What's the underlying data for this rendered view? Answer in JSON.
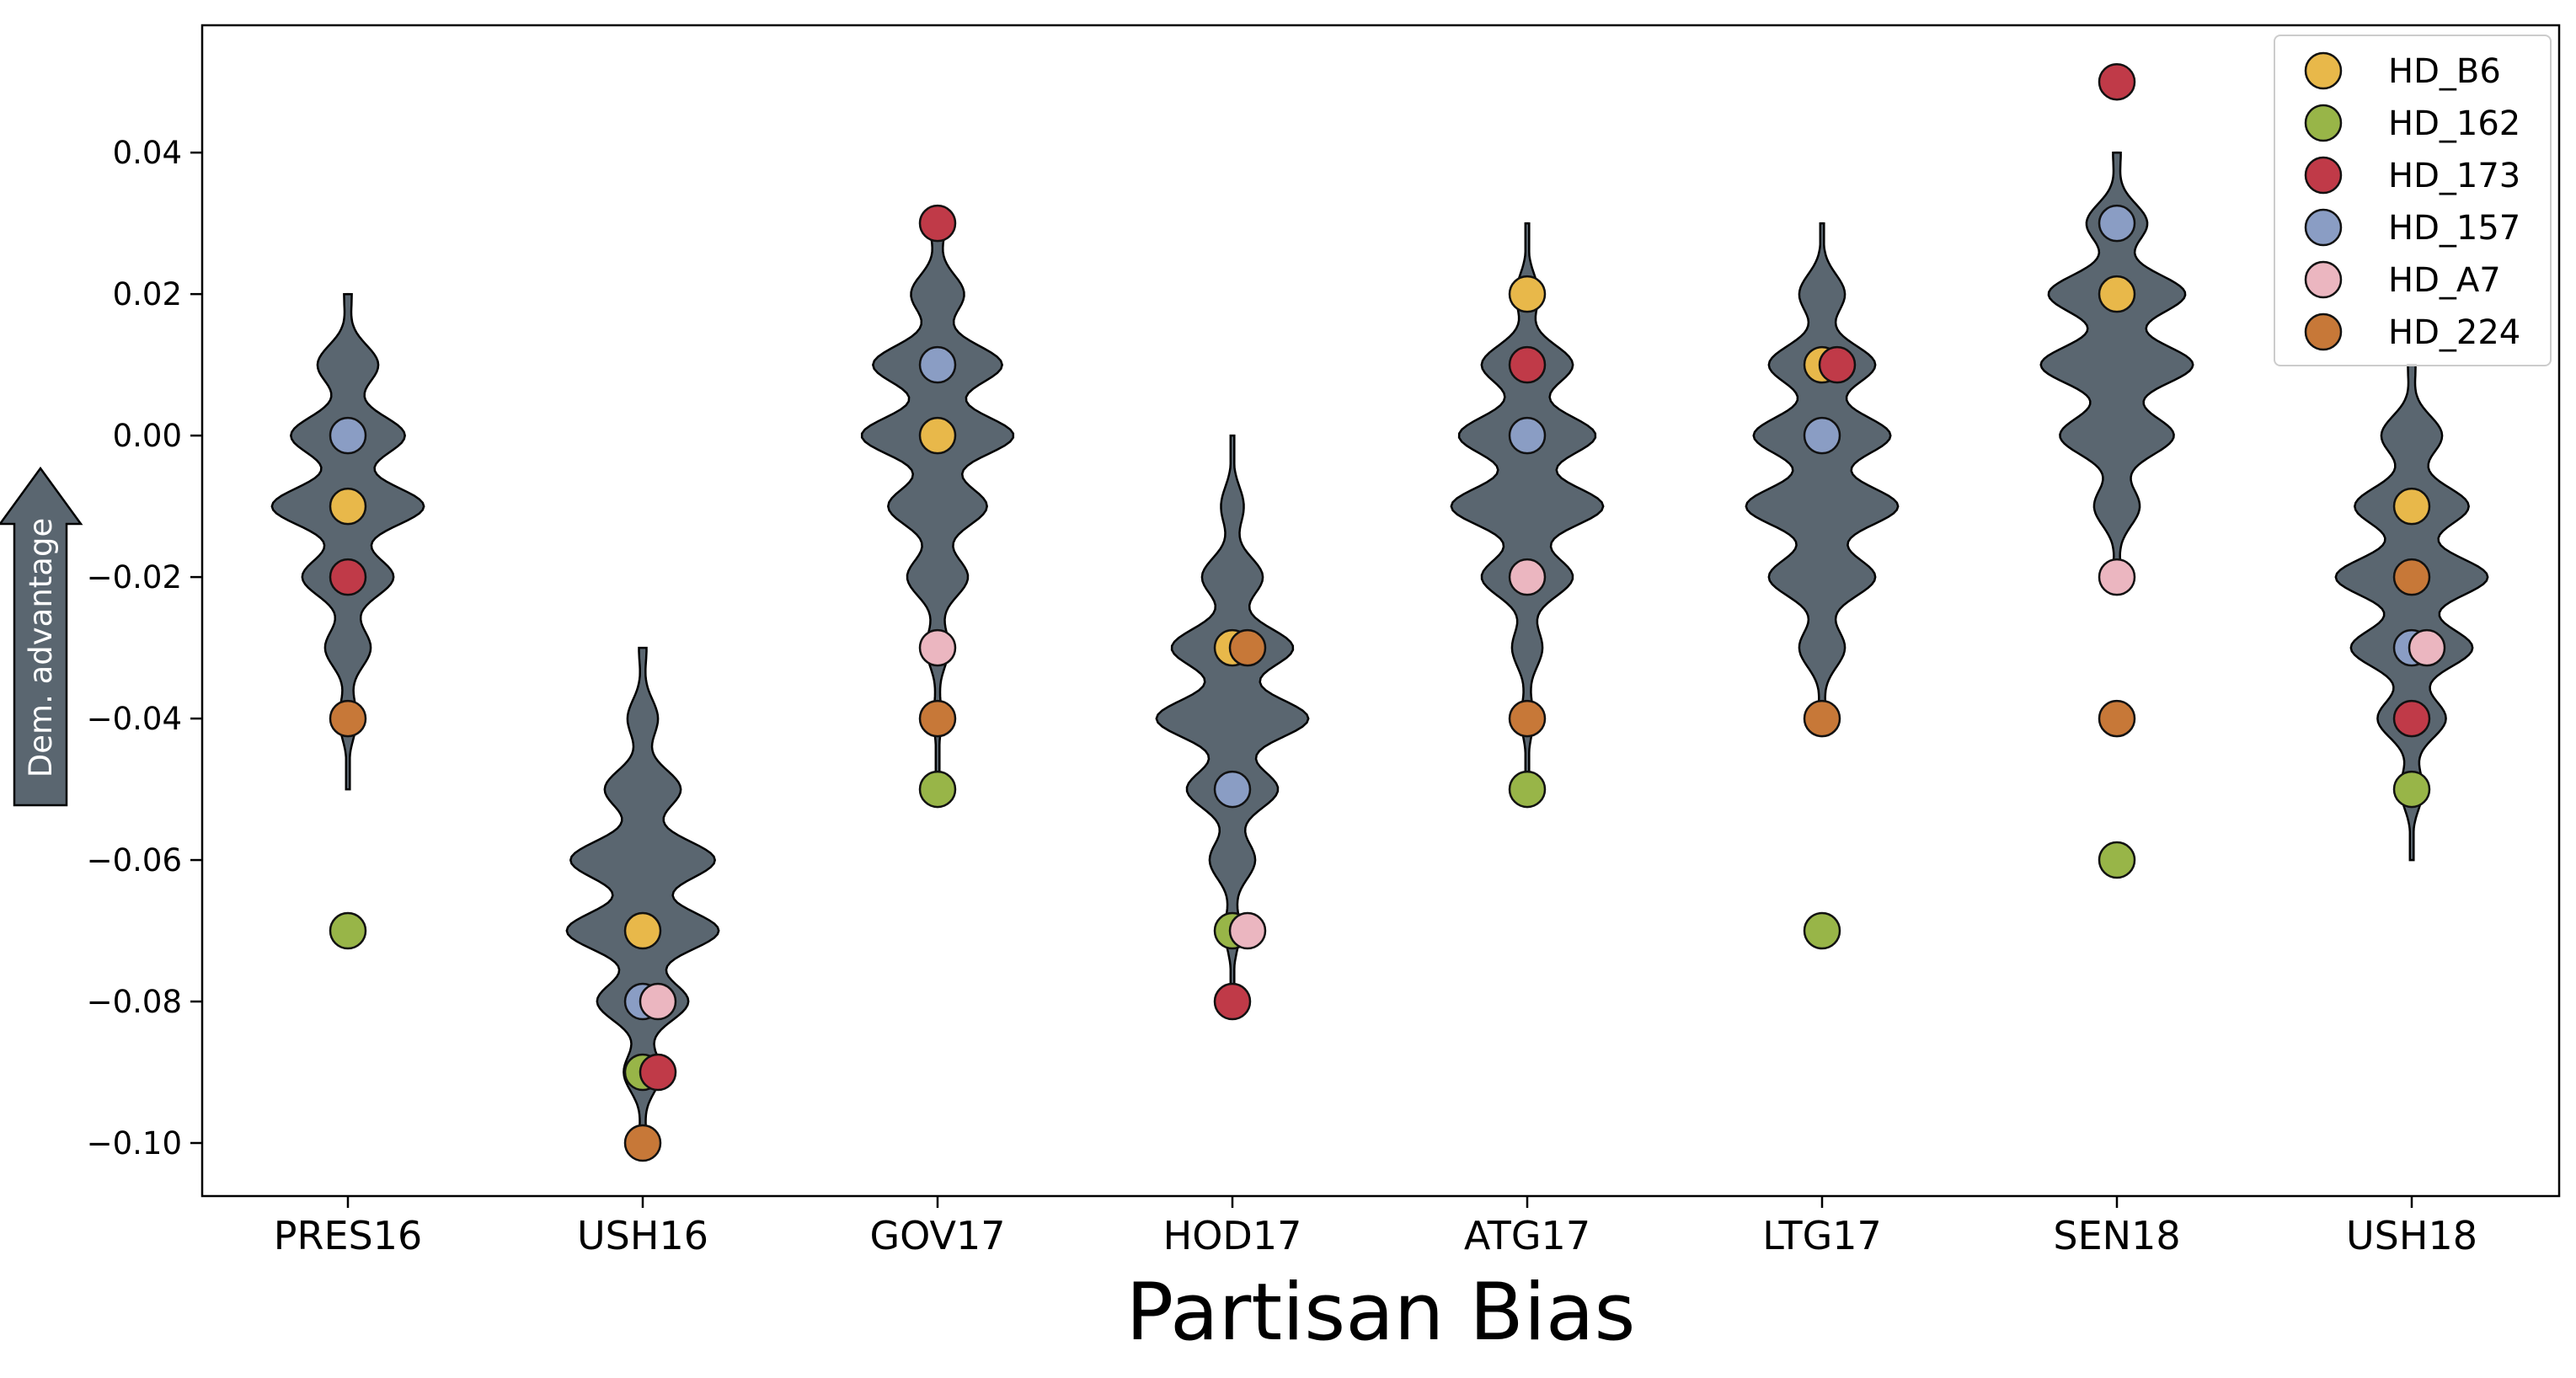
{
  "chart_data": {
    "type": "violin",
    "title": "",
    "xlabel": "Partisan Bias",
    "ylabel": "Dem. advantage",
    "ylim": [
      -0.1075,
      0.058
    ],
    "yticks": [
      0.04,
      0.02,
      0.0,
      -0.02,
      -0.04,
      -0.06,
      -0.08,
      -0.1
    ],
    "ytick_labels": [
      "0.04",
      "0.02",
      "0.00",
      "−0.02",
      "−0.04",
      "−0.06",
      "−0.08",
      "−0.10"
    ],
    "categories": [
      "PRES16",
      "USH16",
      "GOV17",
      "HOD17",
      "ATG17",
      "LTG17",
      "SEN18",
      "USH18"
    ],
    "violin_color": "#5a6670",
    "legend_position": "top-right",
    "violins": [
      {
        "category": "PRES16",
        "range": [
          -0.05,
          0.02
        ],
        "levels": [
          0.02,
          0.01,
          0.0,
          -0.01,
          -0.02,
          -0.03,
          -0.04,
          -0.05
        ],
        "widths": [
          0.05,
          0.4,
          0.75,
          1.0,
          0.6,
          0.3,
          0.12,
          0.02
        ]
      },
      {
        "category": "USH16",
        "range": [
          -0.1,
          -0.03
        ],
        "levels": [
          -0.03,
          -0.04,
          -0.05,
          -0.06,
          -0.07,
          -0.08,
          -0.09,
          -0.1
        ],
        "widths": [
          0.05,
          0.2,
          0.5,
          0.95,
          1.0,
          0.6,
          0.25,
          0.05
        ]
      },
      {
        "category": "GOV17",
        "range": [
          -0.05,
          0.03
        ],
        "levels": [
          0.03,
          0.02,
          0.01,
          0.0,
          -0.01,
          -0.02,
          -0.03,
          -0.04,
          -0.05
        ],
        "widths": [
          0.1,
          0.35,
          0.85,
          1.0,
          0.65,
          0.4,
          0.15,
          0.05,
          0.02
        ]
      },
      {
        "category": "HOD17",
        "range": [
          -0.08,
          0.0
        ],
        "levels": [
          0.0,
          -0.01,
          -0.02,
          -0.03,
          -0.04,
          -0.05,
          -0.06,
          -0.07,
          -0.08
        ],
        "widths": [
          0.02,
          0.15,
          0.4,
          0.8,
          1.0,
          0.6,
          0.3,
          0.1,
          0.03
        ]
      },
      {
        "category": "ATG17",
        "range": [
          -0.05,
          0.03
        ],
        "levels": [
          0.03,
          0.02,
          0.01,
          0.0,
          -0.01,
          -0.02,
          -0.03,
          -0.04,
          -0.05
        ],
        "widths": [
          0.02,
          0.15,
          0.6,
          0.9,
          1.0,
          0.6,
          0.2,
          0.08,
          0.02
        ]
      },
      {
        "category": "LTG17",
        "range": [
          -0.04,
          0.03
        ],
        "levels": [
          0.03,
          0.02,
          0.01,
          0.0,
          -0.01,
          -0.02,
          -0.03,
          -0.04
        ],
        "widths": [
          0.02,
          0.3,
          0.7,
          0.9,
          1.0,
          0.7,
          0.3,
          0.05
        ]
      },
      {
        "category": "SEN18",
        "range": [
          -0.02,
          0.04
        ],
        "levels": [
          0.04,
          0.03,
          0.02,
          0.01,
          0.0,
          -0.01,
          -0.02
        ],
        "widths": [
          0.05,
          0.4,
          0.9,
          1.0,
          0.75,
          0.3,
          0.05
        ]
      },
      {
        "category": "USH18",
        "range": [
          -0.06,
          0.01
        ],
        "levels": [
          0.01,
          0.0,
          -0.01,
          -0.02,
          -0.03,
          -0.04,
          -0.05,
          -0.06
        ],
        "widths": [
          0.05,
          0.4,
          0.75,
          1.0,
          0.8,
          0.45,
          0.15,
          0.02
        ]
      }
    ],
    "series": [
      {
        "name": "HD_B6",
        "color": "#e8b84a",
        "values": [
          -0.01,
          -0.07,
          0.0,
          -0.03,
          0.02,
          0.01,
          0.02,
          -0.01
        ]
      },
      {
        "name": "HD_162",
        "color": "#98b548",
        "values": [
          -0.07,
          -0.09,
          -0.05,
          -0.07,
          -0.05,
          -0.07,
          -0.06,
          -0.05
        ]
      },
      {
        "name": "HD_173",
        "color": "#c03a48",
        "values": [
          -0.02,
          -0.09,
          0.03,
          -0.08,
          0.01,
          0.01,
          0.05,
          -0.04
        ]
      },
      {
        "name": "HD_157",
        "color": "#8a9dc4",
        "values": [
          0.0,
          -0.08,
          0.01,
          -0.05,
          0.0,
          0.0,
          0.03,
          -0.03
        ]
      },
      {
        "name": "HD_A7",
        "color": "#ebb6c0",
        "values": [
          null,
          -0.08,
          -0.03,
          -0.07,
          -0.02,
          null,
          -0.02,
          -0.03
        ]
      },
      {
        "name": "HD_224",
        "color": "#c77838",
        "values": [
          -0.04,
          -0.1,
          -0.04,
          -0.03,
          -0.04,
          -0.04,
          -0.04,
          -0.02
        ]
      }
    ]
  }
}
